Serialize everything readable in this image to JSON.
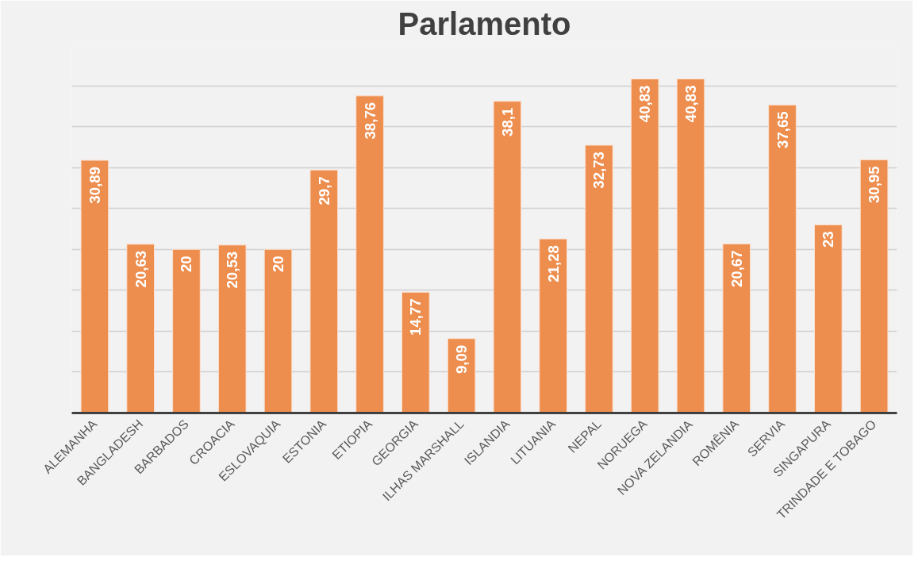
{
  "chart_data": {
    "type": "bar",
    "title": "Parlamento",
    "categories": [
      "ALEMANHA",
      "BANGLADESH",
      "BARBADOS",
      "CROACIA",
      "ESLOVAQUIA",
      "ESTONIA",
      "ETIOPIA",
      "GEORGIA",
      "ILHAS MARSHALL",
      "ISLANDIA",
      "LITUANIA",
      "NEPAL",
      "NORUEGA",
      "NOVA ZELANDIA",
      "ROMÊNIA",
      "SERVIA",
      "SINGAPURA",
      "TRINDADE E TOBAGO"
    ],
    "values": [
      30.89,
      20.63,
      20,
      20.53,
      20,
      29.7,
      38.76,
      14.77,
      9.09,
      38.1,
      21.28,
      32.73,
      40.83,
      40.83,
      20.67,
      37.65,
      23,
      30.95
    ],
    "value_labels": [
      "30,89",
      "20,63",
      "20",
      "20,53",
      "20",
      "29,7",
      "38,76",
      "14,77",
      "9,09",
      "38,1",
      "21,28",
      "32,73",
      "40,83",
      "40,83",
      "20,67",
      "37,65",
      "23",
      "30,95"
    ],
    "color": "#ed8d4e",
    "ylim": [
      0,
      45
    ],
    "yticks": [
      {
        "value": 0,
        "label": null
      },
      {
        "value": 5,
        "label": null
      },
      {
        "value": 10,
        "label": null
      },
      {
        "value": 15,
        "label": null
      },
      {
        "value": 20,
        "label": null
      },
      {
        "value": 25,
        "label": null
      },
      {
        "value": 30,
        "label": null
      },
      {
        "value": 35,
        "label": null
      },
      {
        "value": 40,
        "label": null
      },
      {
        "value": 45,
        "label": null
      }
    ],
    "tick_labels": "x",
    "grid": "y"
  }
}
